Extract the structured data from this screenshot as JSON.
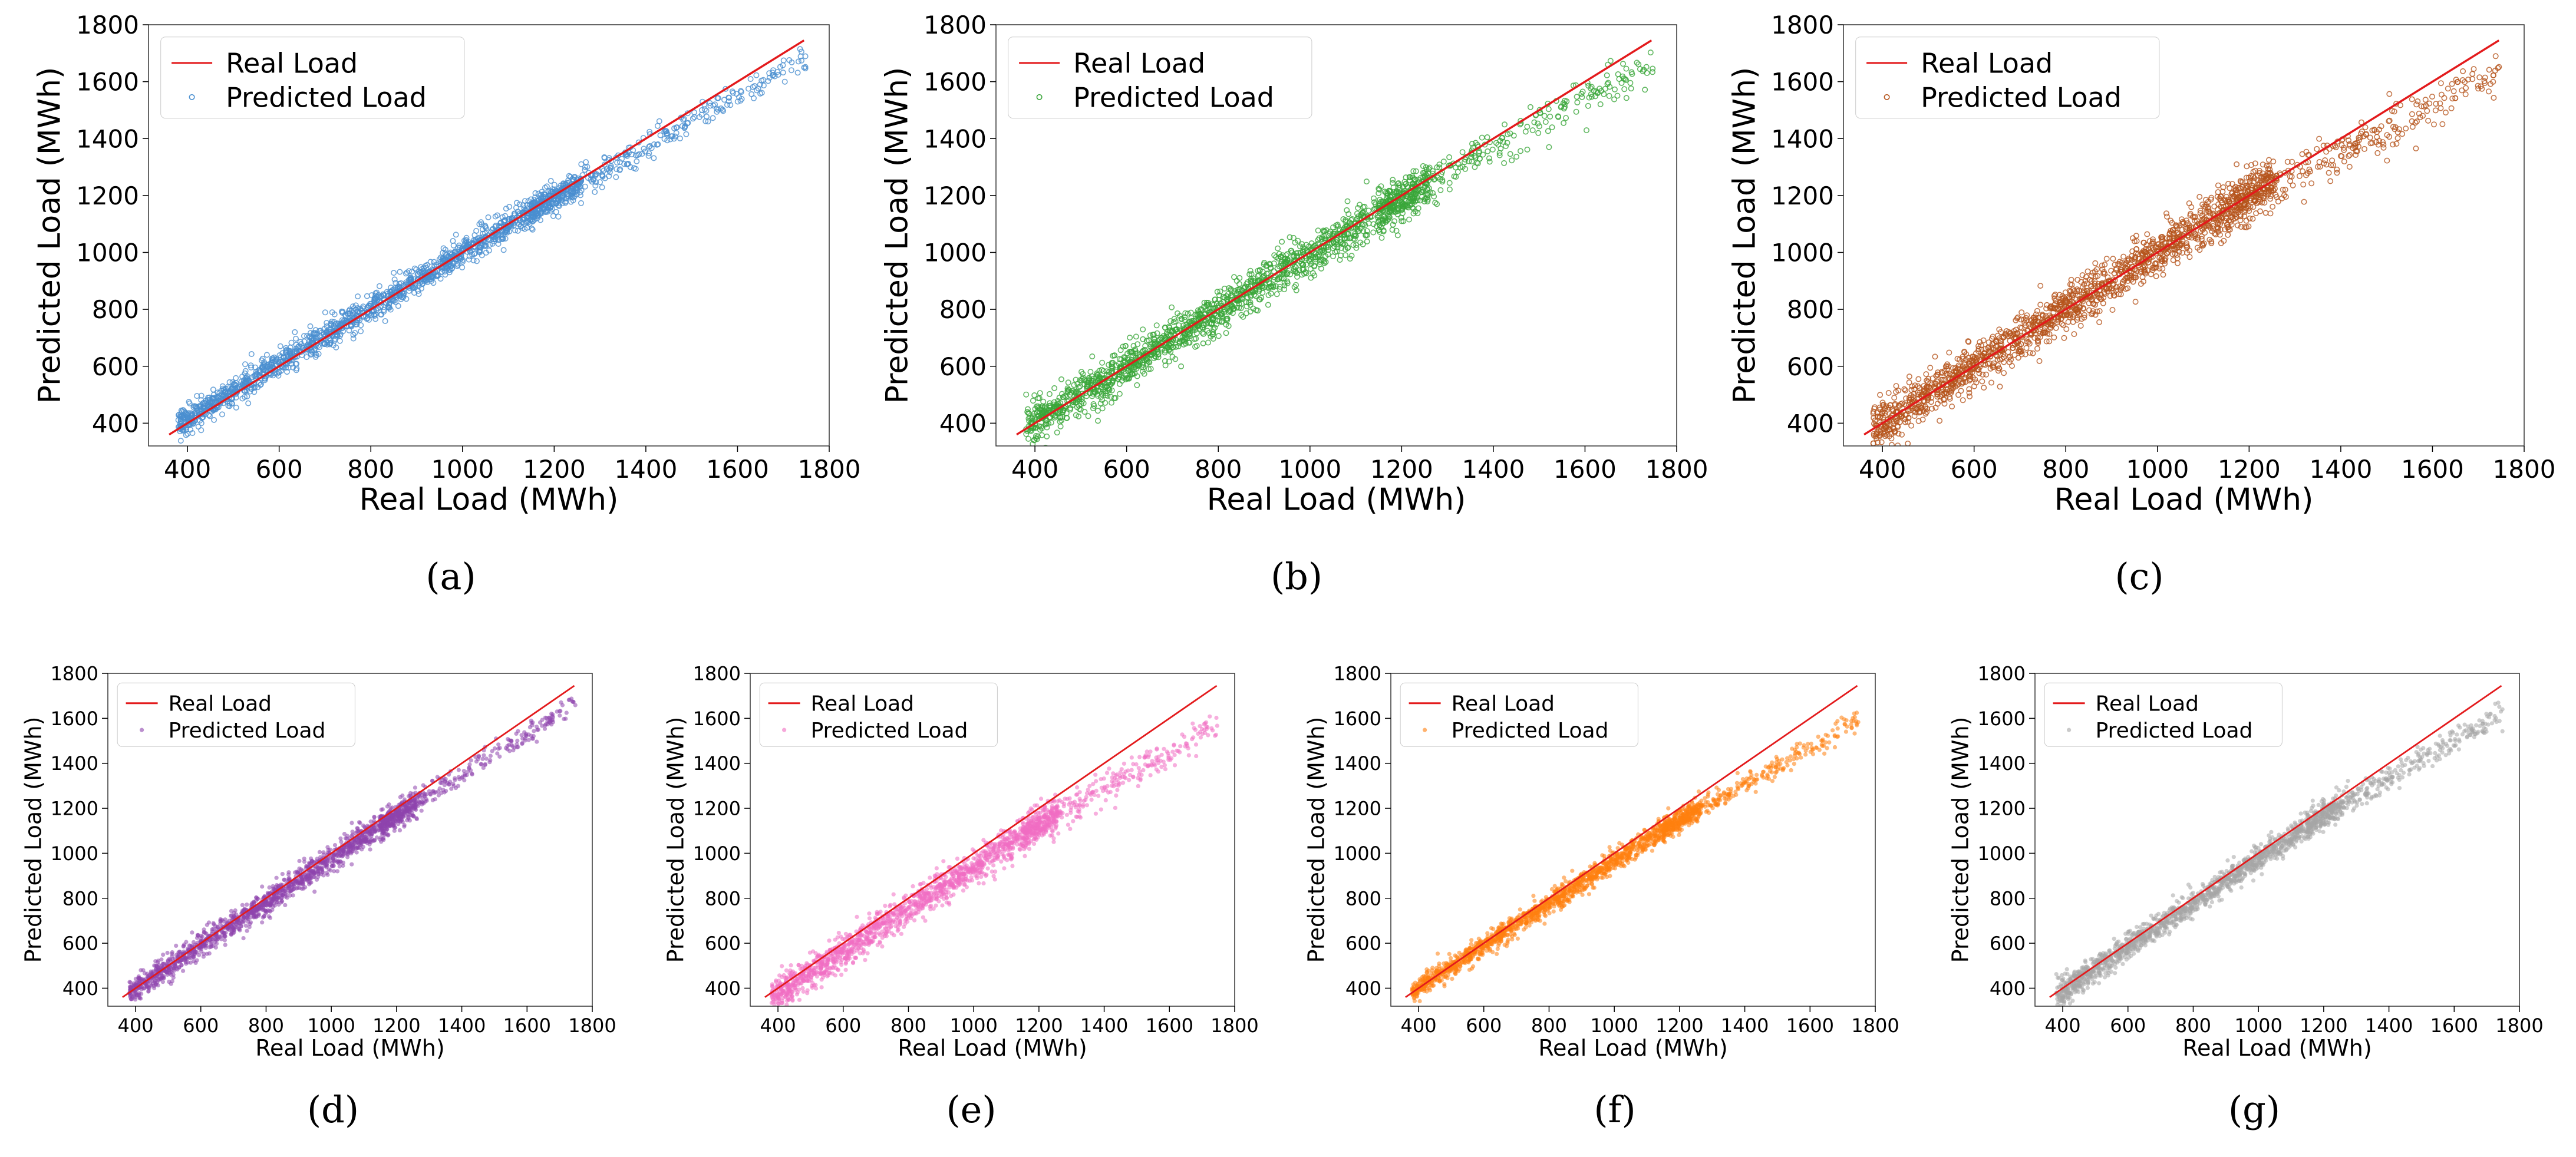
{
  "chart_data": [
    {
      "type": "scatter",
      "caption": "(a)",
      "xlabel": "Real Load (MWh)",
      "ylabel": "Predicted Load (MWh)",
      "xlim": [
        315,
        1800
      ],
      "ylim": [
        320,
        1800
      ],
      "xticks": [
        400,
        600,
        800,
        1000,
        1200,
        1400,
        1600,
        1800
      ],
      "yticks": [
        400,
        600,
        800,
        1000,
        1200,
        1400,
        1600,
        1800
      ],
      "legend": [
        "Real Load",
        "Predicted Load"
      ],
      "legend_position": "upper-left",
      "series": [
        {
          "name": "Real Load",
          "kind": "line",
          "color": "#e31a1c",
          "x": [
            360,
            1745
          ],
          "y": [
            360,
            1745
          ]
        },
        {
          "name": "Predicted Load",
          "kind": "scatter",
          "color": "#4a8fd0",
          "marker": "hollow-circle",
          "trend": {
            "x": [
              360,
              1200,
              1745
            ],
            "y": [
              375,
              1195,
              1680
            ]
          },
          "spread": 30,
          "points": 1800
        }
      ]
    },
    {
      "type": "scatter",
      "caption": "(b)",
      "xlabel": "Real Load (MWh)",
      "ylabel": "Predicted Load (MWh)",
      "xlim": [
        315,
        1800
      ],
      "ylim": [
        320,
        1800
      ],
      "xticks": [
        400,
        600,
        800,
        1000,
        1200,
        1400,
        1600,
        1800
      ],
      "yticks": [
        400,
        600,
        800,
        1000,
        1200,
        1400,
        1600,
        1800
      ],
      "legend": [
        "Real Load",
        "Predicted Load"
      ],
      "legend_position": "upper-left",
      "series": [
        {
          "name": "Real Load",
          "kind": "line",
          "color": "#e31a1c",
          "x": [
            360,
            1745
          ],
          "y": [
            360,
            1745
          ]
        },
        {
          "name": "Predicted Load",
          "kind": "scatter",
          "color": "#3aa63a",
          "marker": "hollow-circle",
          "trend": {
            "x": [
              360,
              1200,
              1745
            ],
            "y": [
              360,
              1190,
              1670
            ]
          },
          "spread": 45,
          "points": 1800
        }
      ]
    },
    {
      "type": "scatter",
      "caption": "(c)",
      "xlabel": "Real Load (MWh)",
      "ylabel": "Predicted Load (MWh)",
      "xlim": [
        315,
        1800
      ],
      "ylim": [
        320,
        1800
      ],
      "xticks": [
        400,
        600,
        800,
        1000,
        1200,
        1400,
        1600,
        1800
      ],
      "yticks": [
        400,
        600,
        800,
        1000,
        1200,
        1400,
        1600,
        1800
      ],
      "legend": [
        "Real Load",
        "Predicted Load"
      ],
      "legend_position": "upper-left",
      "series": [
        {
          "name": "Real Load",
          "kind": "line",
          "color": "#e31a1c",
          "x": [
            360,
            1745
          ],
          "y": [
            360,
            1745
          ]
        },
        {
          "name": "Predicted Load",
          "kind": "scatter",
          "color": "#b5541c",
          "marker": "hollow-circle",
          "trend": {
            "x": [
              360,
              1200,
              1745
            ],
            "y": [
              360,
              1200,
              1630
            ]
          },
          "spread": 50,
          "points": 1800
        }
      ]
    },
    {
      "type": "scatter",
      "caption": "(d)",
      "xlabel": "Real Load (MWh)",
      "ylabel": "Predicted Load (MWh)",
      "xlim": [
        315,
        1800
      ],
      "ylim": [
        320,
        1800
      ],
      "xticks": [
        400,
        600,
        800,
        1000,
        1200,
        1400,
        1600,
        1800
      ],
      "yticks": [
        400,
        600,
        800,
        1000,
        1200,
        1400,
        1600,
        1800
      ],
      "legend": [
        "Real Load",
        "Predicted Load"
      ],
      "legend_position": "upper-left",
      "series": [
        {
          "name": "Real Load",
          "kind": "line",
          "color": "#e31a1c",
          "x": [
            360,
            1745
          ],
          "y": [
            360,
            1745
          ]
        },
        {
          "name": "Predicted Load",
          "kind": "scatter",
          "color": "#8e44ad",
          "marker": "dot",
          "trend": {
            "x": [
              360,
              1200,
              1745
            ],
            "y": [
              360,
              1170,
              1660
            ]
          },
          "spread": 35,
          "points": 1800
        }
      ]
    },
    {
      "type": "scatter",
      "caption": "(e)",
      "xlabel": "Real Load (MWh)",
      "ylabel": "Predicted Load (MWh)",
      "xlim": [
        315,
        1800
      ],
      "ylim": [
        320,
        1800
      ],
      "xticks": [
        400,
        600,
        800,
        1000,
        1200,
        1400,
        1600,
        1800
      ],
      "yticks": [
        400,
        600,
        800,
        1000,
        1200,
        1400,
        1600,
        1800
      ],
      "legend": [
        "Real Load",
        "Predicted Load"
      ],
      "legend_position": "upper-left",
      "series": [
        {
          "name": "Real Load",
          "kind": "line",
          "color": "#e31a1c",
          "x": [
            360,
            1745
          ],
          "y": [
            360,
            1745
          ]
        },
        {
          "name": "Predicted Load",
          "kind": "scatter",
          "color": "#f06ec2",
          "marker": "dot",
          "trend": {
            "x": [
              360,
              1200,
              1745
            ],
            "y": [
              340,
              1130,
              1560
            ]
          },
          "spread": 45,
          "points": 1800
        }
      ]
    },
    {
      "type": "scatter",
      "caption": "(f)",
      "xlabel": "Real Load (MWh)",
      "ylabel": "Predicted Load (MWh)",
      "xlim": [
        315,
        1800
      ],
      "ylim": [
        320,
        1800
      ],
      "xticks": [
        400,
        600,
        800,
        1000,
        1200,
        1400,
        1600,
        1800
      ],
      "yticks": [
        400,
        600,
        800,
        1000,
        1200,
        1400,
        1600,
        1800
      ],
      "legend": [
        "Real Load",
        "Predicted Load"
      ],
      "legend_position": "upper-left",
      "series": [
        {
          "name": "Real Load",
          "kind": "line",
          "color": "#e31a1c",
          "x": [
            360,
            1745
          ],
          "y": [
            360,
            1745
          ]
        },
        {
          "name": "Predicted Load",
          "kind": "scatter",
          "color": "#ff7f0e",
          "marker": "dot",
          "trend": {
            "x": [
              360,
              1200,
              1745
            ],
            "y": [
              365,
              1150,
              1580
            ]
          },
          "spread": 30,
          "points": 1800
        }
      ]
    },
    {
      "type": "scatter",
      "caption": "(g)",
      "xlabel": "Real Load (MWh)",
      "ylabel": "Predicted Load (MWh)",
      "xlim": [
        315,
        1800
      ],
      "ylim": [
        320,
        1800
      ],
      "xticks": [
        400,
        600,
        800,
        1000,
        1200,
        1400,
        1600,
        1800
      ],
      "yticks": [
        400,
        600,
        800,
        1000,
        1200,
        1400,
        1600,
        1800
      ],
      "legend": [
        "Real Load",
        "Predicted Load"
      ],
      "legend_position": "upper-left",
      "series": [
        {
          "name": "Real Load",
          "kind": "line",
          "color": "#e31a1c",
          "x": [
            360,
            1745
          ],
          "y": [
            360,
            1745
          ]
        },
        {
          "name": "Predicted Load",
          "kind": "scatter",
          "color": "#a6a6a6",
          "marker": "dot",
          "trend": {
            "x": [
              360,
              1200,
              1745
            ],
            "y": [
              350,
              1170,
              1620
            ]
          },
          "spread": 35,
          "points": 1800
        }
      ]
    }
  ]
}
